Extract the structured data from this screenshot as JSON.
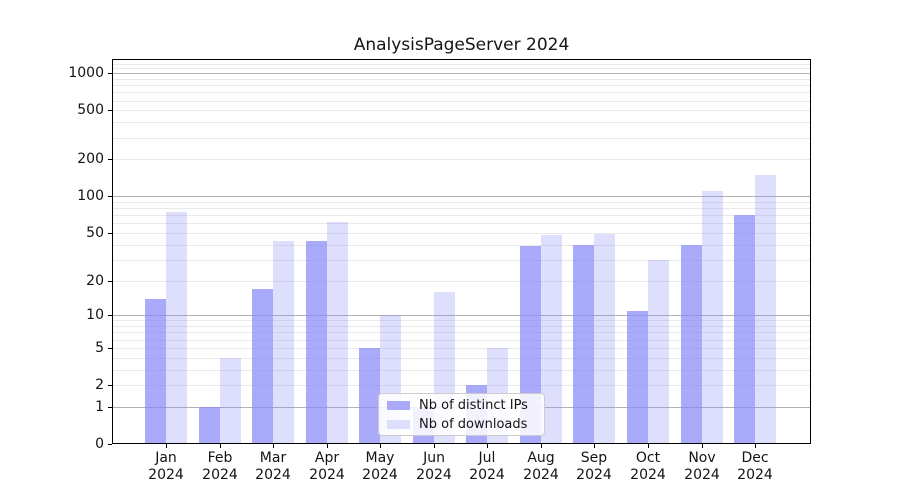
{
  "chart_data": {
    "type": "bar",
    "title": "AnalysisPageServer 2024",
    "categories": [
      "Jan 2024",
      "Feb 2024",
      "Mar 2024",
      "Apr 2024",
      "May 2024",
      "Jun 2024",
      "Jul 2024",
      "Aug 2024",
      "Sep 2024",
      "Oct 2024",
      "Nov 2024",
      "Dec 2024"
    ],
    "series": [
      {
        "name": "Nb of distinct IPs",
        "values": [
          14,
          1,
          17,
          43,
          5,
          1,
          2,
          39,
          40,
          11,
          40,
          70
        ],
        "bar_color": "rgba(137,137,248,0.72)",
        "legend_color": "#aaaaf9"
      },
      {
        "name": "Nb of downloads",
        "values": [
          75,
          4,
          43,
          62,
          10,
          16,
          5,
          48,
          49,
          30,
          110,
          150
        ],
        "bar_color": "rgba(137,137,248,0.28)",
        "legend_color": "#dedefd"
      }
    ],
    "yscale": "log10(value+1)",
    "yticks": [
      0,
      1,
      2,
      5,
      10,
      20,
      50,
      100,
      200,
      500,
      1000
    ],
    "ylim": [
      0,
      1300
    ],
    "xlabel": "",
    "ylabel": "",
    "grid": "horizontal; major lines at powers of 10, faint minor lines between",
    "legend_position": "inside lower-center"
  },
  "colors": {
    "background": "#ffffff",
    "axis": "#000000",
    "major_grid": "#b2b2b2",
    "minor_grid": "#e9e9e9",
    "text": "#141414"
  }
}
